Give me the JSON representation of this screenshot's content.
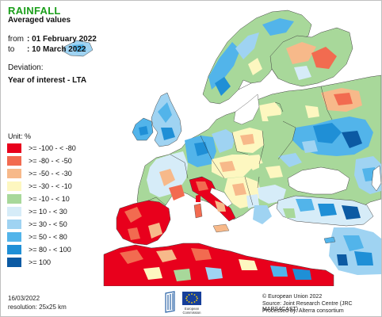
{
  "header": {
    "title": "RAINFALL",
    "subtitle": "Averaged values",
    "from_label": "from",
    "from_value": ": 01 February 2022",
    "to_label": "to",
    "to_value": ": 10 March 2022",
    "deviation_label": "Deviation:",
    "deviation_value": "Year of interest - LTA"
  },
  "legend": {
    "unit": "Unit:  %",
    "items": [
      {
        "label": ">= -100 - < -80",
        "color": "#e8001c"
      },
      {
        "label": ">= -80 - < -50",
        "color": "#f26b50"
      },
      {
        "label": ">= -50 - < -30",
        "color": "#f7b98a"
      },
      {
        "label": ">= -30 - < -10",
        "color": "#fdf7c0"
      },
      {
        "label": ">= -10 - < 10",
        "color": "#a8d89a"
      },
      {
        "label": ">= 10 - < 30",
        "color": "#d6ecf8"
      },
      {
        "label": ">= 30 - < 50",
        "color": "#9fd3f2"
      },
      {
        "label": ">= 50 - < 80",
        "color": "#52b4ea"
      },
      {
        "label": ">= 80 - < 100",
        "color": "#1f8fd6"
      },
      {
        "label": ">= 100",
        "color": "#0b5aa3"
      }
    ]
  },
  "footer": {
    "date": "16/03/2022",
    "resolution": "resolution: 25x25 km",
    "copyright": "© European Union 2022",
    "source": "Source: Joint Research Centre (JRC MARS4CAST)",
    "processed": "Processed by: Alterra consortium",
    "logo_text_1": "European",
    "logo_text_2": "Commission"
  },
  "map": {
    "ocean_color": "#ffffff",
    "border_color": "#333333"
  }
}
